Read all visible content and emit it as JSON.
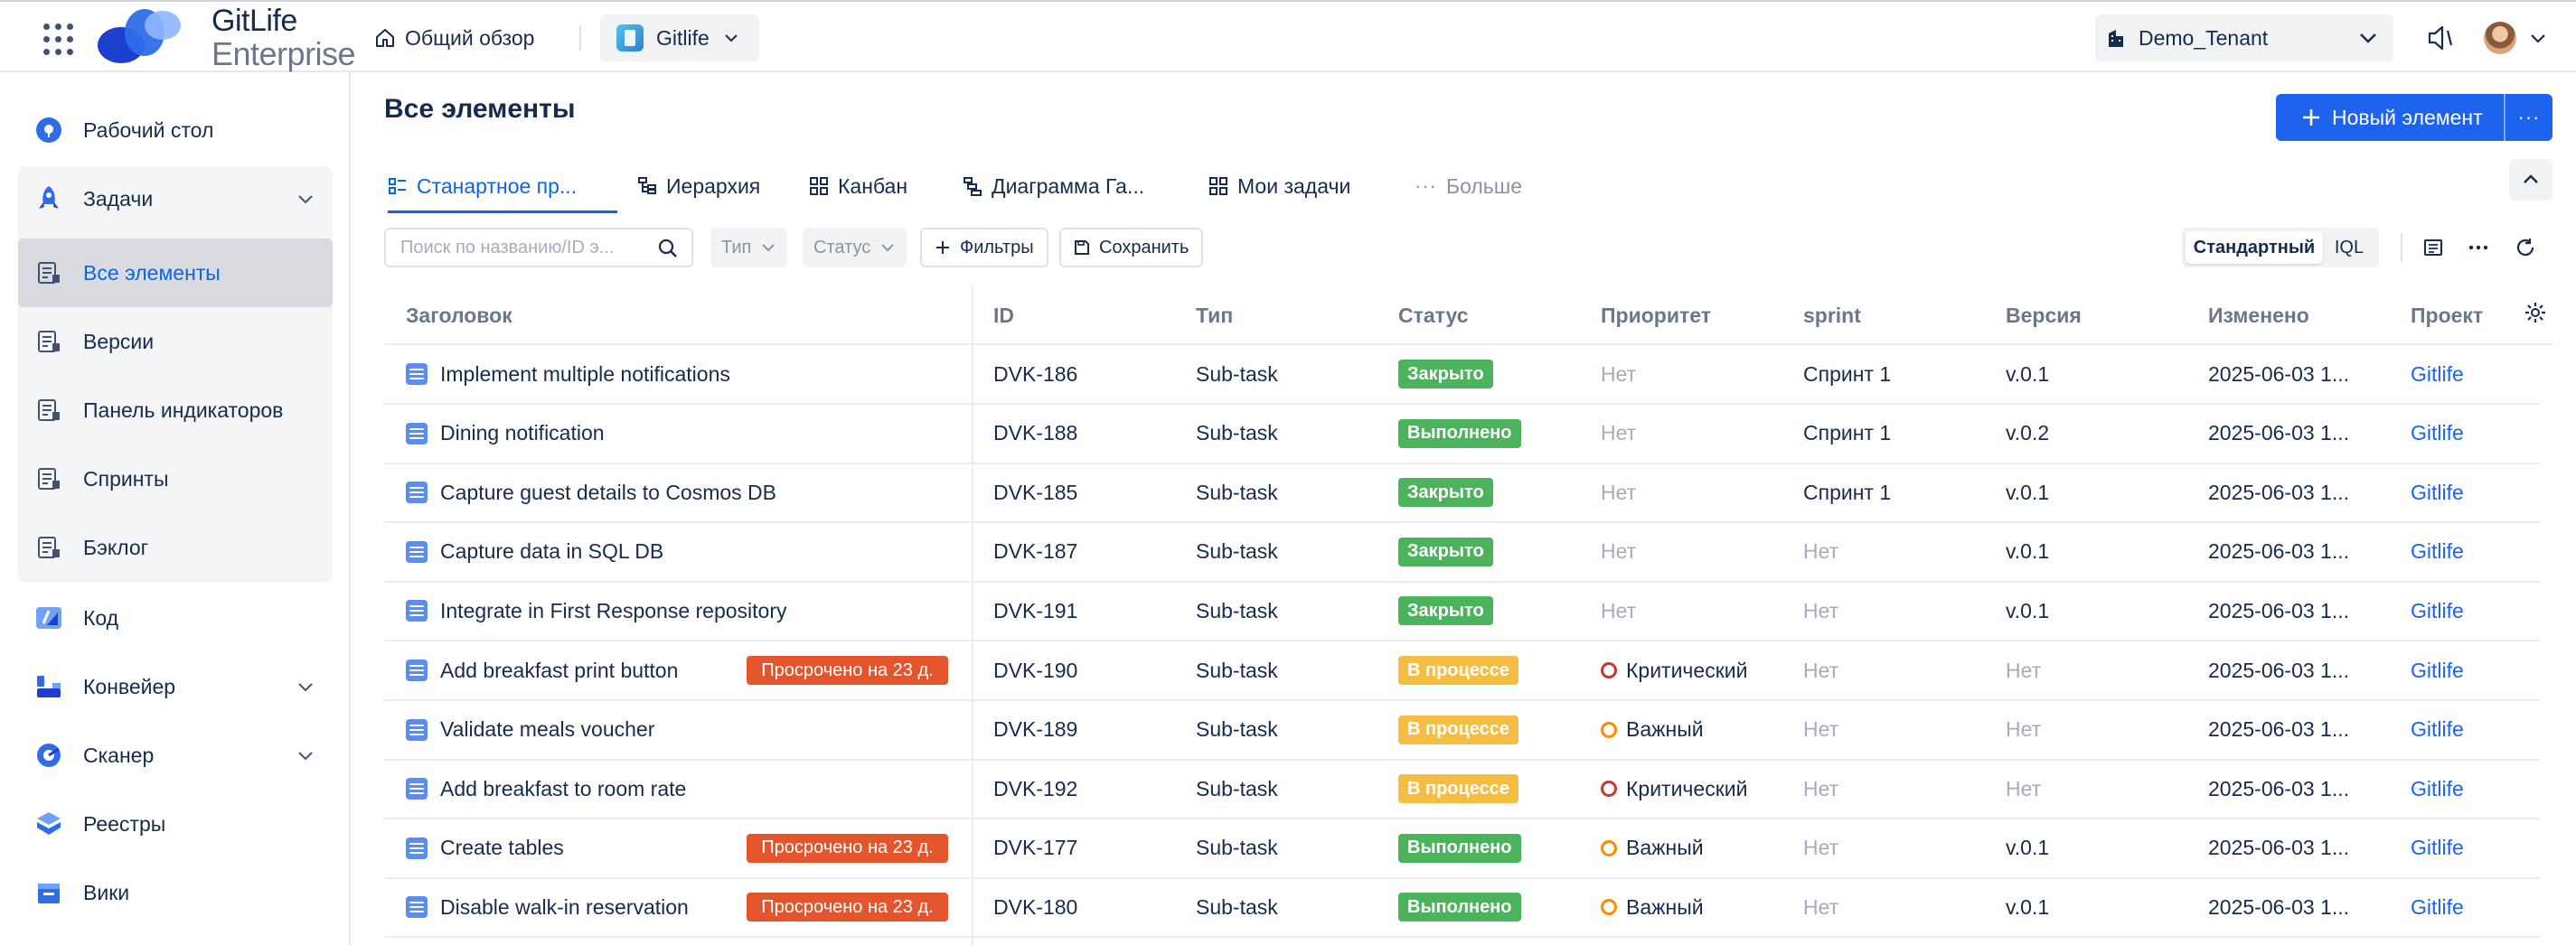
{
  "app": {
    "logo_line1": "GitLife",
    "logo_line2": "Enterprise",
    "overview_label": "Общий обзор",
    "project_name": "Gitlife",
    "tenant_name": "Demo_Tenant"
  },
  "sidebar": {
    "items": [
      {
        "label": "Рабочий стол",
        "icon": "dashboard-icon"
      },
      {
        "label": "Задачи",
        "icon": "rocket-icon",
        "expandable": true
      },
      {
        "label": "Все элементы",
        "icon": "list-icon",
        "active": true
      },
      {
        "label": "Версии",
        "icon": "list-icon"
      },
      {
        "label": "Панель индикаторов",
        "icon": "list-icon"
      },
      {
        "label": "Спринты",
        "icon": "list-icon"
      },
      {
        "label": "Бэклог",
        "icon": "list-icon"
      },
      {
        "label": "Код",
        "icon": "code-icon"
      },
      {
        "label": "Конвейер",
        "icon": "pipeline-icon",
        "expandable": true
      },
      {
        "label": "Сканер",
        "icon": "scanner-icon",
        "expandable": true
      },
      {
        "label": "Реестры",
        "icon": "registry-icon"
      },
      {
        "label": "Вики",
        "icon": "wiki-icon"
      }
    ]
  },
  "page": {
    "title": "Все элементы",
    "new_button_label": "Новый элемент",
    "new_button_more": "···"
  },
  "tabs": [
    {
      "label": "Станартное пр...",
      "icon": "list-view-icon",
      "active": true
    },
    {
      "label": "Иерархия",
      "icon": "hierarchy-icon"
    },
    {
      "label": "Канбан",
      "icon": "kanban-icon"
    },
    {
      "label": "Диаграмма Га...",
      "icon": "gantt-icon"
    },
    {
      "label": "Мои задачи",
      "icon": "kanban-icon"
    },
    {
      "label": "Больше",
      "icon": "more-icon",
      "muted": true
    }
  ],
  "toolbar": {
    "search_placeholder": "Поиск по названию/ID э...",
    "type_filter": "Тип",
    "status_filter": "Статус",
    "filters_label": "Фильтры",
    "save_label": "Сохранить",
    "mode_standard": "Стандартный",
    "mode_iql": "IQL"
  },
  "table": {
    "columns": [
      "Заголовок",
      "ID",
      "Тип",
      "Статус",
      "Приоритет",
      "sprint",
      "Версия",
      "Изменено",
      "Проект"
    ],
    "rows": [
      {
        "title": "Implement multiple notifications",
        "overdue": "",
        "id": "DVK-186",
        "type": "Sub-task",
        "status": "Закрыто",
        "status_color": "#4bb35b",
        "priority": "Нет",
        "priority_level": "none",
        "sprint": "Спринт 1",
        "version": "v.0.1",
        "modified": "2025-06-03 1...",
        "project": "Gitlife"
      },
      {
        "title": "Dining notification",
        "overdue": "",
        "id": "DVK-188",
        "type": "Sub-task",
        "status": "Выполнено",
        "status_color": "#4bb35b",
        "priority": "Нет",
        "priority_level": "none",
        "sprint": "Спринт 1",
        "version": "v.0.2",
        "modified": "2025-06-03 1...",
        "project": "Gitlife"
      },
      {
        "title": "Capture guest details to Cosmos DB",
        "overdue": "",
        "id": "DVK-185",
        "type": "Sub-task",
        "status": "Закрыто",
        "status_color": "#4bb35b",
        "priority": "Нет",
        "priority_level": "none",
        "sprint": "Спринт 1",
        "version": "v.0.1",
        "modified": "2025-06-03 1...",
        "project": "Gitlife"
      },
      {
        "title": "Capture data in SQL DB",
        "overdue": "",
        "id": "DVK-187",
        "type": "Sub-task",
        "status": "Закрыто",
        "status_color": "#4bb35b",
        "priority": "Нет",
        "priority_level": "none",
        "sprint": "Нет",
        "version": "v.0.1",
        "modified": "2025-06-03 1...",
        "project": "Gitlife"
      },
      {
        "title": "Integrate in First Response repository",
        "overdue": "",
        "id": "DVK-191",
        "type": "Sub-task",
        "status": "Закрыто",
        "status_color": "#4bb35b",
        "priority": "Нет",
        "priority_level": "none",
        "sprint": "Нет",
        "version": "v.0.1",
        "modified": "2025-06-03 1...",
        "project": "Gitlife"
      },
      {
        "title": "Add breakfast print button",
        "overdue": "Просрочено на 23 д.",
        "id": "DVK-190",
        "type": "Sub-task",
        "status": "В процессе",
        "status_color": "#f5bd41",
        "priority": "Критический",
        "priority_level": "critical",
        "sprint": "Нет",
        "version": "Нет",
        "modified": "2025-06-03 1...",
        "project": "Gitlife"
      },
      {
        "title": "Validate meals voucher",
        "overdue": "",
        "id": "DVK-189",
        "type": "Sub-task",
        "status": "В процессе",
        "status_color": "#f5bd41",
        "priority": "Важный",
        "priority_level": "major",
        "sprint": "Нет",
        "version": "Нет",
        "modified": "2025-06-03 1...",
        "project": "Gitlife"
      },
      {
        "title": "Add breakfast to room rate",
        "overdue": "",
        "id": "DVK-192",
        "type": "Sub-task",
        "status": "В процессе",
        "status_color": "#f5bd41",
        "priority": "Критический",
        "priority_level": "critical",
        "sprint": "Нет",
        "version": "Нет",
        "modified": "2025-06-03 1...",
        "project": "Gitlife"
      },
      {
        "title": "Create tables",
        "overdue": "Просрочено на 23 д.",
        "id": "DVK-177",
        "type": "Sub-task",
        "status": "Выполнено",
        "status_color": "#4bb35b",
        "priority": "Важный",
        "priority_level": "major",
        "sprint": "Нет",
        "version": "v.0.1",
        "modified": "2025-06-03 1...",
        "project": "Gitlife"
      },
      {
        "title": "Disable walk-in reservation",
        "overdue": "Просрочено на 23 д.",
        "id": "DVK-180",
        "type": "Sub-task",
        "status": "Выполнено",
        "status_color": "#4bb35b",
        "priority": "Важный",
        "priority_level": "major",
        "sprint": "Нет",
        "version": "v.0.1",
        "modified": "2025-06-03 1...",
        "project": "Gitlife"
      }
    ]
  },
  "colors": {
    "accent": "#1d63ed",
    "overdue": "#e5552d",
    "status_done": "#4bb35b",
    "status_progress": "#f5bd41"
  }
}
